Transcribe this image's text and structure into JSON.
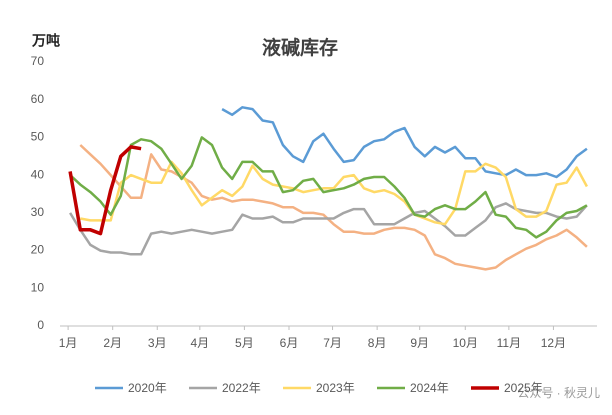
{
  "chart_data": {
    "type": "line",
    "title": "液碱库存",
    "y_label": "万吨",
    "watermark": "公众号 · 秋灵儿",
    "x": [
      1,
      2,
      3,
      4,
      5,
      6,
      7,
      8,
      9,
      10,
      11,
      12,
      13,
      14,
      15,
      16,
      17,
      18,
      19,
      20,
      21,
      22,
      23,
      24,
      25,
      26,
      27,
      28,
      29,
      30,
      31,
      32,
      33,
      34,
      35,
      36,
      37,
      38,
      39,
      40,
      41,
      42,
      43,
      44,
      45,
      46,
      47,
      48,
      49,
      50,
      51,
      52
    ],
    "xlim": [
      0,
      53
    ],
    "xticks": [
      {
        "value": 0.8,
        "label": "1月"
      },
      {
        "value": 5.2,
        "label": "2月"
      },
      {
        "value": 9.6,
        "label": "3月"
      },
      {
        "value": 13.8,
        "label": "4月"
      },
      {
        "value": 18.2,
        "label": "5月"
      },
      {
        "value": 22.6,
        "label": "6月"
      },
      {
        "value": 26.9,
        "label": "7月"
      },
      {
        "value": 31.3,
        "label": "8月"
      },
      {
        "value": 35.5,
        "label": "9月"
      },
      {
        "value": 40,
        "label": "10月"
      },
      {
        "value": 44.3,
        "label": "11月"
      },
      {
        "value": 48.7,
        "label": "12月"
      }
    ],
    "ylim": [
      0,
      70
    ],
    "yticks": [
      0,
      10,
      20,
      30,
      40,
      50,
      60,
      70
    ],
    "grid": false,
    "series": [
      {
        "name": "2020年",
        "color": "#5b9bd5",
        "width": 2.5,
        "values": [
          null,
          null,
          null,
          null,
          null,
          null,
          null,
          null,
          null,
          null,
          null,
          null,
          null,
          null,
          null,
          57.5,
          56,
          58,
          57.5,
          54.5,
          54,
          48,
          45,
          43.5,
          49,
          51,
          47,
          43.5,
          44,
          47.5,
          49,
          49.5,
          51.5,
          52.5,
          47.5,
          45,
          47.5,
          46,
          47.5,
          44.5,
          44.5,
          41,
          40.5,
          40,
          41.5,
          40,
          40,
          40.5,
          39.5,
          41.5,
          45,
          47
        ]
      },
      {
        "color": "#f4b183",
        "width": 2.5,
        "values": [
          null,
          48,
          45.5,
          43,
          40,
          37,
          34,
          34,
          45.5,
          41.5,
          41,
          39.5,
          38,
          34.5,
          33.5,
          34,
          33,
          33.5,
          33.5,
          33,
          32.5,
          31.5,
          31.5,
          30,
          30,
          29.5,
          27,
          25,
          25,
          24.5,
          24.5,
          25.5,
          26,
          26,
          25.5,
          24,
          19,
          18,
          16.5,
          16,
          15.5,
          15,
          15.5,
          17.5,
          19,
          20.5,
          21.5,
          23,
          24,
          25.5,
          23.5,
          21
        ]
      },
      {
        "name": "2022年",
        "color": "#a5a5a5",
        "width": 2.5,
        "values": [
          30,
          25.5,
          21.5,
          20,
          19.5,
          19.5,
          19,
          19,
          24.5,
          25,
          24.5,
          25,
          25.5,
          25,
          24.5,
          25,
          25.5,
          29.5,
          28.5,
          28.5,
          29,
          27.5,
          27.5,
          28.5,
          28.5,
          28.5,
          28.5,
          30,
          31,
          31,
          27,
          27,
          27,
          28.5,
          30,
          30.5,
          28.5,
          26.5,
          24,
          24,
          26,
          28,
          31.5,
          32.5,
          31,
          30.5,
          30,
          30,
          29,
          28.5,
          29,
          32
        ]
      },
      {
        "name": "2023年",
        "color": "#ffd966",
        "width": 2.5,
        "values": [
          null,
          28.5,
          28,
          28,
          28,
          38,
          40,
          39,
          38,
          38,
          43.5,
          40.5,
          36,
          32,
          34,
          36,
          34.5,
          37,
          42.5,
          39,
          37.5,
          37,
          36.5,
          35.5,
          36,
          36.5,
          36.5,
          39.5,
          40,
          36.5,
          35.5,
          36,
          35,
          33,
          29.5,
          28.5,
          27.5,
          27,
          31,
          41,
          41,
          43,
          42,
          39.5,
          31,
          29,
          29,
          30.5,
          37.5,
          38,
          42,
          37
        ]
      },
      {
        "name": "2024年",
        "color": "#70ad47",
        "width": 2.5,
        "values": [
          40,
          37.5,
          35.5,
          33,
          29.5,
          34.5,
          48,
          49.5,
          49,
          47,
          43,
          39,
          42.5,
          50,
          48,
          42,
          39,
          43.5,
          43.5,
          41,
          41,
          35.5,
          36,
          38.5,
          39,
          35.5,
          36,
          36.5,
          37.5,
          39,
          39.5,
          39.5,
          37,
          34,
          29.5,
          29,
          31,
          32,
          31,
          31,
          33,
          35.5,
          29.5,
          29,
          26,
          25.5,
          23.5,
          25,
          28,
          30,
          30.5,
          32
        ]
      },
      {
        "name": "2025年",
        "color": "#c00000",
        "width": 3.5,
        "values": [
          41,
          25.5,
          25.5,
          24.5,
          36,
          45,
          47.5,
          47,
          null,
          null,
          null,
          null,
          null,
          null,
          null,
          null,
          null,
          null,
          null,
          null,
          null,
          null,
          null,
          null,
          null,
          null,
          null,
          null,
          null,
          null,
          null,
          null,
          null,
          null,
          null,
          null,
          null,
          null,
          null,
          null,
          null,
          null,
          null,
          null,
          null,
          null,
          null,
          null,
          null,
          null,
          null,
          null
        ]
      }
    ]
  }
}
